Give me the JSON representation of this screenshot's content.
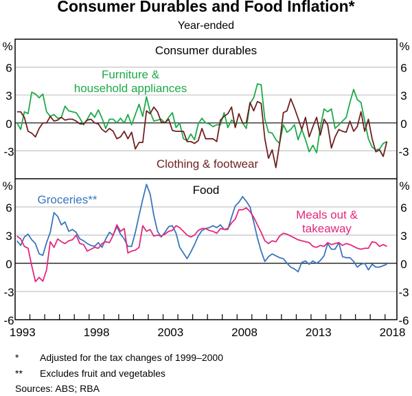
{
  "title": "Consumer Durables and Food Inflation*",
  "subtitle": "Year-ended",
  "footnotes": [
    {
      "mark": "*",
      "text": "Adjusted for the tax changes of 1999–2000"
    },
    {
      "mark": "**",
      "text": "Excludes fruit and vegetables"
    }
  ],
  "sources": "Sources: ABS; RBA",
  "chart_data": [
    {
      "type": "line",
      "panel_title": "Consumer durables",
      "ylabel": "%",
      "ylim": [
        -6,
        9
      ],
      "yticks": [
        6,
        3,
        0,
        -3
      ],
      "grid": true,
      "x_start": "1993Q1",
      "frequency": "quarterly",
      "series": [
        {
          "name": "Furniture & household appliances",
          "label_lines": [
            "Furniture &",
            "household appliances"
          ],
          "color": "#1aaa47",
          "values": [
            0.0,
            -0.7,
            1.2,
            1.0,
            3.3,
            3.1,
            2.7,
            3.1,
            1.2,
            0.7,
            0.9,
            0.5,
            0.6,
            1.8,
            1.3,
            1.2,
            1.1,
            0.5,
            -0.2,
            0.4,
            1.1,
            0.6,
            1.4,
            0.5,
            -0.6,
            0.4,
            0.4,
            0.0,
            0.5,
            0.0,
            0.9,
            -0.2,
            0.9,
            2.0,
            0.7,
            2.8,
            1.2,
            0.2,
            0.3,
            0.4,
            0.0,
            0.6,
            1.1,
            -0.5,
            0.0,
            -1.7,
            -1.9,
            -1.2,
            -1.8,
            -0.1,
            0.5,
            0.0,
            -0.1,
            -0.4,
            -0.2,
            -0.2,
            1.1,
            -0.5,
            0.3,
            0.0,
            0.0,
            0.0,
            -0.6,
            2.1,
            2.7,
            4.2,
            4.1,
            0.4,
            -1.0,
            -1.1,
            -1.8,
            -2.2,
            -0.2,
            -1.0,
            -0.7,
            -0.2,
            -1.8,
            -0.7,
            -1.8,
            -3.1,
            -2.4,
            -3.2,
            -0.5,
            1.5,
            1.2,
            1.5,
            -0.6,
            -0.2,
            0.2,
            0.6,
            2.2,
            3.6,
            2.5,
            2.2,
            0.2,
            -1.7,
            -2.6,
            -2.9,
            -2.8,
            -2.2,
            -2.0
          ]
        },
        {
          "name": "Clothing & footwear",
          "label_lines": [
            "Clothing & footwear"
          ],
          "color": "#6e1f1f",
          "values": [
            1.2,
            1.2,
            0.6,
            -0.9,
            -1.1,
            -1.5,
            -0.6,
            0.0,
            0.0,
            0.7,
            0.2,
            0.3,
            0.6,
            0.3,
            0.4,
            0.4,
            0.2,
            -0.1,
            -0.1,
            0.3,
            0.4,
            0.0,
            -0.1,
            -0.7,
            -1.0,
            -0.6,
            -0.9,
            -1.7,
            -1.5,
            -0.9,
            -1.7,
            -1.0,
            -2.8,
            -2.1,
            -2.1,
            1.3,
            1.0,
            1.7,
            1.2,
            0.1,
            0.0,
            0.4,
            -0.8,
            -0.9,
            -0.9,
            -0.9,
            -2.0,
            -2.0,
            -2.2,
            -1.9,
            -0.6,
            -1.7,
            -1.7,
            -1.7,
            -2.0,
            0.3,
            0.7,
            1.0,
            1.7,
            -0.5,
            1.0,
            0.0,
            0.0,
            2.2,
            1.3,
            2.3,
            2.1,
            -1.7,
            -3.8,
            -2.9,
            -4.8,
            -2.2,
            1.1,
            1.3,
            2.6,
            1.6,
            0.5,
            -0.7,
            0.6,
            -1.5,
            -0.4,
            0.6,
            -1.3,
            0.4,
            -0.2,
            -2.7,
            -1.5,
            -0.7,
            -0.9,
            -1.0,
            0.2,
            -0.9,
            -0.4,
            1.2,
            -0.9,
            0.4,
            -1.7,
            -3.1,
            -2.9,
            -3.6,
            -2.0
          ]
        }
      ]
    },
    {
      "type": "line",
      "panel_title": "Food",
      "ylabel": "%",
      "ylim": [
        -6,
        9
      ],
      "yticks": [
        6,
        3,
        0,
        -3,
        -6
      ],
      "grid": true,
      "x_start": "1993Q1",
      "frequency": "quarterly",
      "xticks": [
        "1993",
        "1998",
        "2003",
        "2008",
        "2013",
        "2018"
      ],
      "series": [
        {
          "name": "Groceries**",
          "label_lines": [
            "Groceries**"
          ],
          "color": "#3775bd",
          "values": [
            2.4,
            1.9,
            2.8,
            3.1,
            2.5,
            2.1,
            1.0,
            0.85,
            2.2,
            3.3,
            5.4,
            5.0,
            4.1,
            4.4,
            3.4,
            3.6,
            3.3,
            2.6,
            2.4,
            2.1,
            1.9,
            1.8,
            2.2,
            1.7,
            2.6,
            3.3,
            3.0,
            3.9,
            3.1,
            2.6,
            1.8,
            1.8,
            3.3,
            5.1,
            6.8,
            8.4,
            7.4,
            5.1,
            3.4,
            2.8,
            3.3,
            3.9,
            4.0,
            3.2,
            1.7,
            1.1,
            0.5,
            1.2,
            2.0,
            2.9,
            3.5,
            3.7,
            3.8,
            4.0,
            3.8,
            4.1,
            3.6,
            3.6,
            4.9,
            6.1,
            6.5,
            7.1,
            6.6,
            6.0,
            4.4,
            2.7,
            1.3,
            0.2,
            0.7,
            1.0,
            0.8,
            0.6,
            0.5,
            0.0,
            -0.4,
            -0.6,
            -0.9,
            0.1,
            0.25,
            -0.1,
            0.25,
            0.0,
            0.3,
            0.8,
            2.1,
            1.5,
            1.5,
            2.2,
            0.7,
            0.6,
            0.6,
            0.2,
            -0.4,
            -0.1,
            0.0,
            -0.7,
            -0.1,
            -0.4,
            -0.4,
            -0.25,
            -0.1
          ]
        },
        {
          "name": "Meals out & takeaway",
          "label_lines": [
            "Meals out &",
            "takeaway"
          ],
          "color": "#e3267c",
          "values": [
            2.9,
            2.6,
            1.8,
            1.6,
            -0.25,
            -1.95,
            -1.5,
            -1.9,
            -0.7,
            2.3,
            1.7,
            2.6,
            2.3,
            2.1,
            2.4,
            2.5,
            3.0,
            2.1,
            2.0,
            1.3,
            1.5,
            1.7,
            1.6,
            2.1,
            2.3,
            2.2,
            3.0,
            4.1,
            3.4,
            3.7,
            1.1,
            1.3,
            1.4,
            1.7,
            4.0,
            3.4,
            3.6,
            2.9,
            3.0,
            2.9,
            3.1,
            3.4,
            3.5,
            4.0,
            3.8,
            3.4,
            3.0,
            2.8,
            3.0,
            3.5,
            3.7,
            3.7,
            3.5,
            3.4,
            3.2,
            3.7,
            3.6,
            3.7,
            4.3,
            4.7,
            5.7,
            5.7,
            5.9,
            5.5,
            4.9,
            4.1,
            3.3,
            2.4,
            2.1,
            2.4,
            2.3,
            2.9,
            3.2,
            3.1,
            2.9,
            2.7,
            2.5,
            2.4,
            2.3,
            2.2,
            1.8,
            1.7,
            1.9,
            1.8,
            2.2,
            2.0,
            2.1,
            2.2,
            1.9,
            2.1,
            2.0,
            1.8,
            1.6,
            1.5,
            1.6,
            1.6,
            2.3,
            2.2,
            1.8,
            2.0,
            1.8
          ]
        }
      ]
    }
  ]
}
